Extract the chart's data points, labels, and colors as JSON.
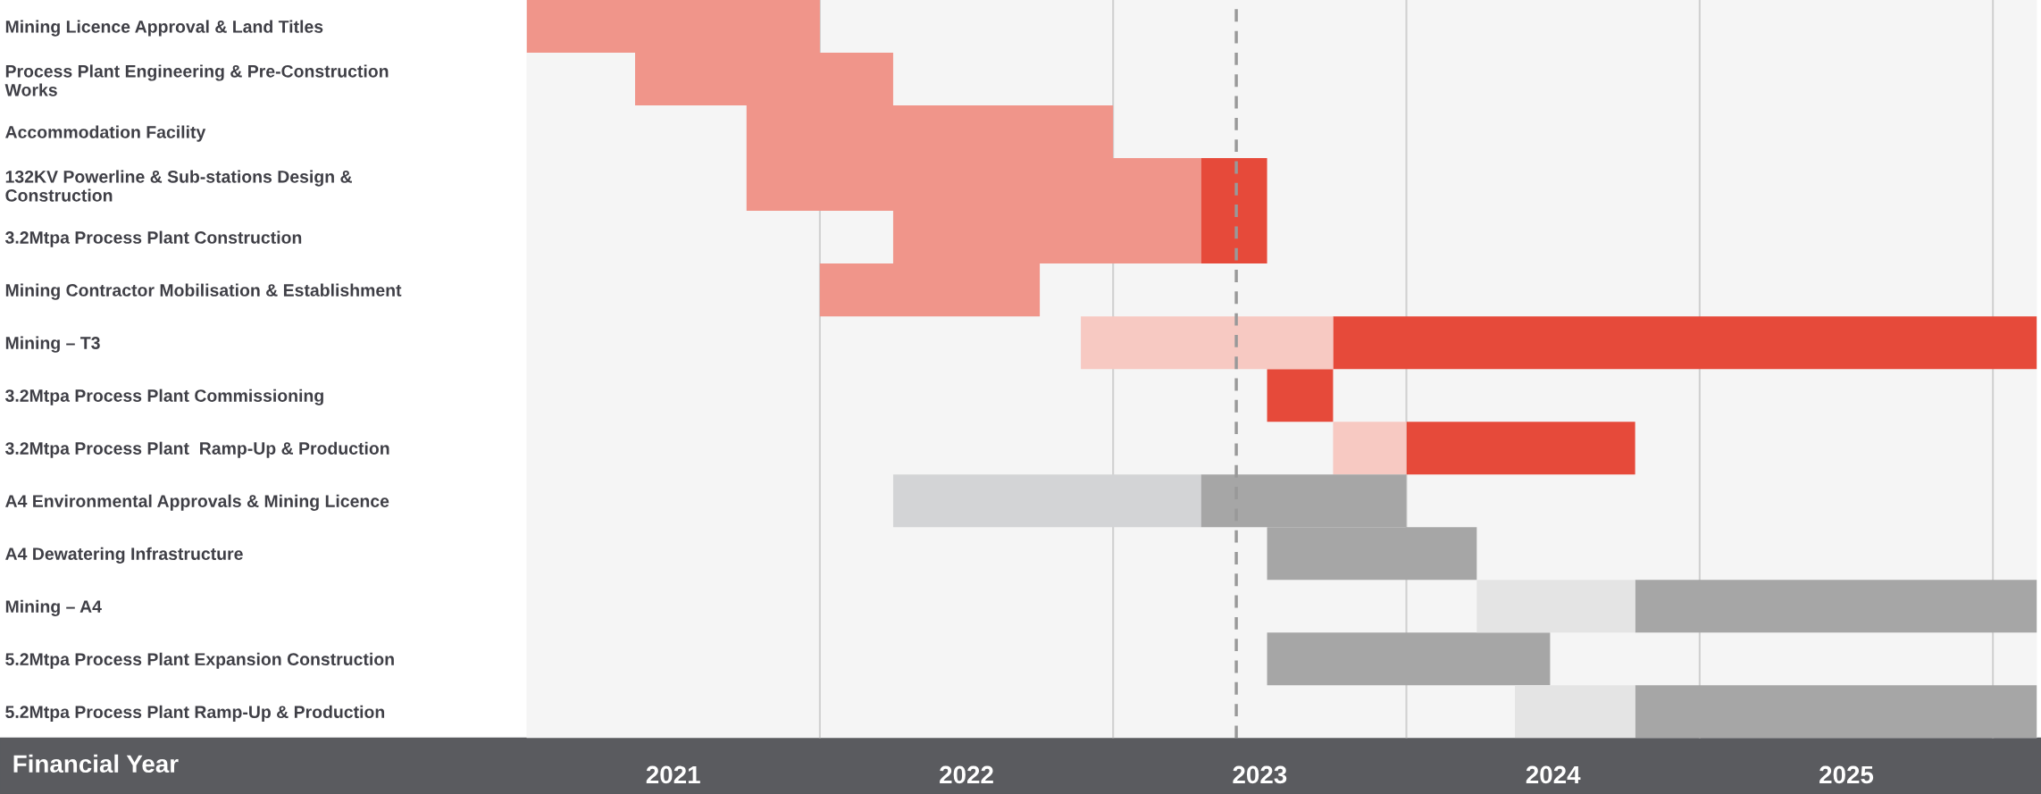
{
  "chart_data": {
    "type": "bar",
    "orientation": "horizontal",
    "xlabel": "Financial Year",
    "categories": [
      "Mining Licence Approval & Land Titles",
      "Process Plant Engineering & Pre-Construction Works",
      "Accommodation Facility",
      "132KV Powerline & Sub-stations Design & Construction",
      "3.2Mtpa Process Plant Construction",
      "Mining Contractor Mobilisation & Establishment",
      "Mining – T3",
      "3.2Mtpa Process Plant Commissioning",
      "3.2Mtpa Process Plant  Ramp-Up & Production",
      "A4 Environmental Approvals & Mining Licence",
      "A4 Dewatering Infrastructure",
      "Mining – A4",
      "5.2Mtpa Process Plant Expansion Construction",
      "5.2Mtpa Process Plant Ramp-Up & Production"
    ],
    "series": [
      {
        "color": "#f0958a",
        "base": [
          2020.0,
          2020.37,
          2020.75,
          2020.75,
          2021.25,
          2021.0,
          null,
          null,
          null,
          null,
          null,
          null,
          null,
          null
        ],
        "values": [
          1.0,
          0.88,
          1.25,
          1.55,
          1.05,
          0.75,
          null,
          null,
          null,
          null,
          null,
          null,
          null,
          null
        ]
      },
      {
        "color": "#e64a3a",
        "base": [
          null,
          null,
          null,
          2022.3,
          2022.3,
          null,
          2022.75,
          2022.525,
          2023.0,
          null,
          null,
          null,
          null,
          null
        ],
        "values": [
          null,
          null,
          null,
          0.225,
          0.225,
          null,
          2.4,
          0.225,
          0.78,
          null,
          null,
          null,
          null,
          null
        ]
      },
      {
        "color": "#f7c9c2",
        "base": [
          null,
          null,
          null,
          null,
          null,
          null,
          2021.89,
          null,
          2022.75,
          null,
          null,
          null,
          null,
          null
        ],
        "values": [
          null,
          null,
          null,
          null,
          null,
          null,
          0.86,
          null,
          0.25,
          null,
          null,
          null,
          null,
          null
        ]
      },
      {
        "color": "#d3d4d6",
        "base": [
          null,
          null,
          null,
          null,
          null,
          null,
          null,
          null,
          null,
          2021.25,
          null,
          null,
          null,
          null
        ],
        "values": [
          null,
          null,
          null,
          null,
          null,
          null,
          null,
          null,
          null,
          1.05,
          null,
          null,
          null,
          null
        ]
      },
      {
        "color": "#a6a6a6",
        "base": [
          null,
          null,
          null,
          null,
          null,
          null,
          null,
          null,
          null,
          2022.3,
          2022.525,
          2023.78,
          2022.525,
          2023.78
        ],
        "values": [
          null,
          null,
          null,
          null,
          null,
          null,
          null,
          null,
          null,
          0.7,
          0.715,
          1.37,
          0.965,
          1.37
        ]
      },
      {
        "color": "#e4e4e4",
        "base": [
          null,
          null,
          null,
          null,
          null,
          null,
          null,
          null,
          null,
          null,
          null,
          2023.24,
          null,
          2023.37
        ],
        "values": [
          null,
          null,
          null,
          null,
          null,
          null,
          null,
          null,
          null,
          null,
          null,
          0.54,
          null,
          0.41
        ]
      }
    ],
    "xlim": [
      2020.0,
      2025.15
    ],
    "xticks": [
      {
        "value": 2020.5,
        "label": "2021"
      },
      {
        "value": 2021,
        "label": null
      },
      {
        "value": 2021.5,
        "label": "2022"
      },
      {
        "value": 2022,
        "label": null
      },
      {
        "value": 2022.5,
        "label": "2023"
      },
      {
        "value": 2023,
        "label": null
      },
      {
        "value": 2023.5,
        "label": "2024"
      },
      {
        "value": 2024,
        "label": null
      },
      {
        "value": 2024.5,
        "label": "2025"
      },
      {
        "value": 2025,
        "label": null
      }
    ],
    "grid": "x",
    "ref_lines": [
      {
        "axis": "x",
        "value": 2022.42,
        "label": null,
        "color": "#999999",
        "line_style": "dashed"
      }
    ]
  }
}
